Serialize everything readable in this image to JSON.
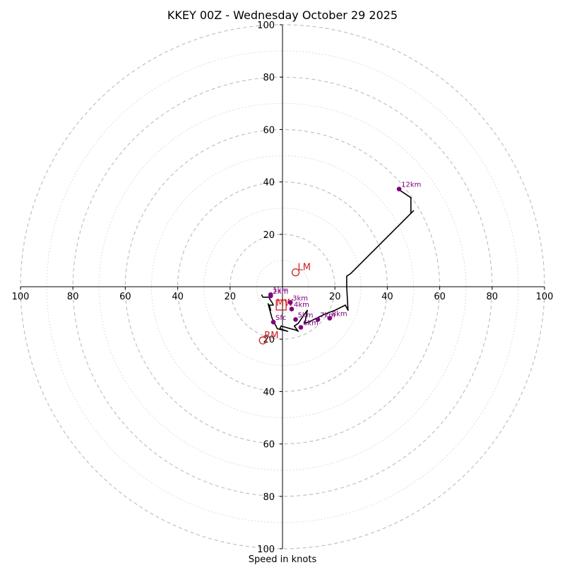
{
  "chart_data": {
    "type": "hodograph",
    "title": "KKEY 00Z - Wednesday October 29 2025",
    "xlabel": "Speed in knots",
    "range": [
      -100,
      100
    ],
    "ring_major": [
      20,
      40,
      60,
      80,
      100
    ],
    "ring_minor": [
      10,
      30,
      50,
      70,
      90
    ],
    "ticks": [
      -100,
      -80,
      -60,
      -40,
      -20,
      20,
      40,
      60,
      80,
      100
    ],
    "tick_labels": [
      "100",
      "80",
      "60",
      "40",
      "20",
      "20",
      "40",
      "60",
      "80",
      "100"
    ],
    "hodograph_trace": [
      [
        -8,
        -3
      ],
      [
        -7.5,
        -4
      ],
      [
        -5,
        -4
      ],
      [
        -4.5,
        -3.5
      ],
      [
        -5,
        -4.5
      ],
      [
        -4,
        -6
      ],
      [
        -3.5,
        -7
      ],
      [
        -5,
        -7
      ],
      [
        -4.5,
        -9
      ],
      [
        -5.5,
        -6.5
      ],
      [
        -4,
        -12
      ],
      [
        -2,
        -16
      ],
      [
        2,
        -17
      ],
      [
        -1,
        -16
      ],
      [
        -0.5,
        -15
      ],
      [
        3,
        -16
      ],
      [
        5,
        -16.5
      ],
      [
        6,
        -17
      ],
      [
        4.5,
        -15
      ],
      [
        6,
        -14
      ],
      [
        8,
        -11
      ],
      [
        9.5,
        -9
      ],
      [
        8.5,
        -14
      ],
      [
        11,
        -13
      ],
      [
        16,
        -10.5
      ],
      [
        20,
        -9
      ],
      [
        24,
        -7
      ],
      [
        25,
        -9
      ],
      [
        24.5,
        0
      ],
      [
        24.5,
        4
      ],
      [
        26,
        5
      ],
      [
        50,
        29
      ],
      [
        49,
        28
      ],
      [
        49,
        34
      ],
      [
        46,
        36
      ],
      [
        44.5,
        37
      ]
    ],
    "height_points": [
      {
        "label": "12km",
        "u": 44.5,
        "v": 37.3
      },
      {
        "label": "8km",
        "u": 18,
        "v": -12
      },
      {
        "label": "7km",
        "u": 13.5,
        "v": -12.5
      },
      {
        "label": "6km",
        "u": 7,
        "v": -15.5
      },
      {
        "label": "5km",
        "u": 5,
        "v": -12.5
      },
      {
        "label": "4km",
        "u": 3.5,
        "v": -8.5
      },
      {
        "label": "3km",
        "u": 3,
        "v": -6
      },
      {
        "label": "2km",
        "u": -4.5,
        "v": -3.5
      },
      {
        "label": "1km",
        "u": -4.5,
        "v": -3
      },
      {
        "label": "Sfc",
        "u": -3.5,
        "v": -13.5
      }
    ],
    "markers": [
      {
        "label": "LM",
        "u": 5,
        "v": 5.5,
        "style": "circle"
      },
      {
        "label": "RM",
        "u": -7.5,
        "v": -20.5,
        "style": "circle"
      },
      {
        "label": "MW",
        "u": -0.5,
        "v": -7,
        "style": "square"
      }
    ],
    "colors": {
      "trace": "#000000",
      "height_points": "#800080",
      "markers": "#cc2222",
      "grid": "#bbbbbb",
      "axis": "#000000"
    }
  }
}
